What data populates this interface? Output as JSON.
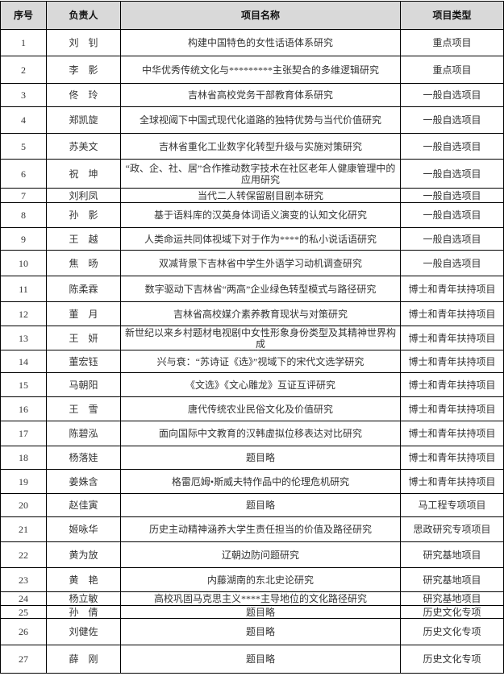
{
  "table": {
    "header": [
      "序号",
      "负责人",
      "项目名称",
      "项目类型"
    ],
    "rows": [
      [
        "1",
        "刘　钊",
        "构建中国特色的女性话语体系研究",
        "重点项目"
      ],
      [
        "2",
        "李　影",
        "中华优秀传统文化与*********主张契合的多维逻辑研究",
        "重点项目"
      ],
      [
        "3",
        "佟　玲",
        "吉林省高校党务干部教育体系研究",
        "一般自选项目"
      ],
      [
        "4",
        "郑凯旋",
        "全球视阈下中国式现代化道路的独特优势与当代价值研究",
        "一般自选项目"
      ],
      [
        "5",
        "苏美文",
        "吉林省重化工业数字化转型升级与实施对策研究",
        "一般自选项目"
      ],
      [
        "6",
        "祝　坤",
        "“政、企、社、居”合作推动数字技术在社区老年人健康管理中的应用研究",
        "一般自选项目"
      ],
      [
        "7",
        "刘利凤",
        "当代二人转保留剧目剧本研究",
        "一般自选项目"
      ],
      [
        "8",
        "孙　影",
        "基于语料库的汉英身体词语义演变的认知文化研究",
        "一般自选项目"
      ],
      [
        "9",
        "王　越",
        "人类命运共同体视域下对于作为****的私小说话语研究",
        "一般自选项目"
      ],
      [
        "10",
        "焦　旸",
        "双减背景下吉林省中学生外语学习动机调查研究",
        "一般自选项目"
      ],
      [
        "11",
        "陈柔霖",
        "数字驱动下吉林省“两高”企业绿色转型模式与路径研究",
        "博士和青年扶持项目"
      ],
      [
        "12",
        "董　月",
        "吉林省高校媒介素养教育现状与对策研究",
        "博士和青年扶持项目"
      ],
      [
        "13",
        "王　妍",
        "新世纪以来乡村题材电视剧中女性形象身份类型及其精神世界构成",
        "博士和青年扶持项目"
      ],
      [
        "14",
        "董宏钰",
        "兴与衰：“苏诗证《选》”视域下的宋代文选学研究",
        "博士和青年扶持项目"
      ],
      [
        "15",
        "马朝阳",
        "《文选》《文心雕龙》互证互评研究",
        "博士和青年扶持项目"
      ],
      [
        "16",
        "王　雪",
        "唐代传统农业民俗文化及价值研究",
        "博士和青年扶持项目"
      ],
      [
        "17",
        "陈碧泓",
        "面向国际中文教育的汉韩虚拟位移表达对比研究",
        "博士和青年扶持项目"
      ],
      [
        "18",
        "杨落娃",
        "题目略",
        "博士和青年扶持项目"
      ],
      [
        "19",
        "姜姝含",
        "格雷厄姆•斯威夫特作品中的伦理危机研究",
        "博士和青年扶持项目"
      ],
      [
        "20",
        "赵佳寅",
        "题目略",
        "马工程专项项目"
      ],
      [
        "21",
        "姬咏华",
        "历史主动精神涵养大学生责任担当的价值及路径研究",
        "思政研究专项项目"
      ],
      [
        "22",
        "黄为放",
        "辽朝边防问题研究",
        "研究基地项目"
      ],
      [
        "23",
        "黄　艳",
        "内藤湖南的东北史论研究",
        "研究基地项目"
      ],
      [
        "24",
        "杨立敏",
        "高校巩固马克思主义****主导地位的文化路径研究",
        "研究基地项目"
      ],
      [
        "25",
        "孙　倩",
        "题目略",
        "历史文化专项"
      ],
      [
        "26",
        "刘健佐",
        "题目略",
        "历史文化专项"
      ],
      [
        "27",
        "薛　刚",
        "题目略",
        "历史文化专项"
      ]
    ]
  }
}
